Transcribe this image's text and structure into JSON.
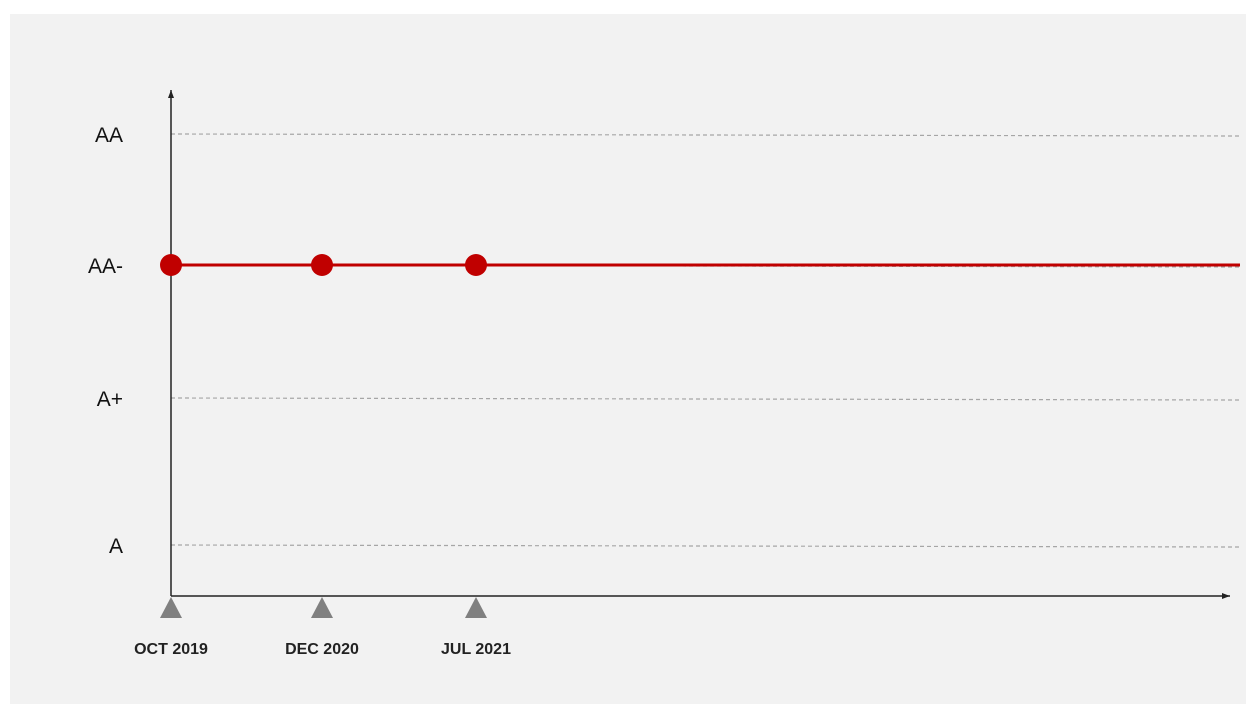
{
  "chart_data": {
    "type": "line",
    "title": "",
    "xlabel": "",
    "ylabel": "",
    "y_categories": [
      "A",
      "A+",
      "AA-",
      "AA"
    ],
    "x_dates": [
      "OCT 2019",
      "DEC 2020",
      "JUL 2021"
    ],
    "series": [
      {
        "points": [
          {
            "x": "OCT 2019",
            "y": "AA-"
          },
          {
            "x": "DEC 2020",
            "y": "AA-"
          },
          {
            "x": "JUL 2021",
            "y": "AA-"
          }
        ],
        "extends_to_right_edge": true
      }
    ],
    "grid": "dashed horizontal at each rating level",
    "colors": {
      "series": "#c00000",
      "gridline": "#a6a6a6",
      "axis": "#222222",
      "marker": "#808080",
      "background": "#f2f2f2"
    }
  }
}
